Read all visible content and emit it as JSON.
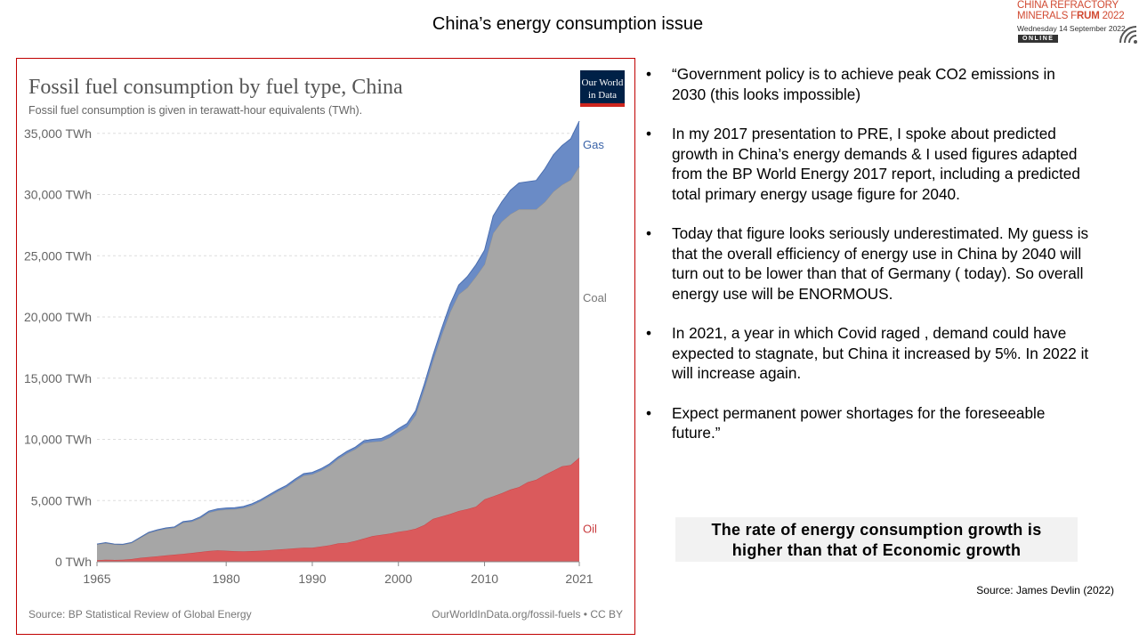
{
  "slide": {
    "title": "China’s energy consumption issue",
    "source": "Source: James Devlin (2022)",
    "callout_line1": "The rate of energy consumption growth is",
    "callout_line2": "higher than that of Economic growth"
  },
  "logo": {
    "line1": "CHINA REFRACTORY",
    "line2_prefix": "MINERALS F",
    "line2_bold": "RUM",
    "line2_suffix": " 2022",
    "date": "Wednesday 14 September 2022",
    "badge": "ONLINE",
    "icon": "signal-waves-icon"
  },
  "bullets": [
    "“Government policy is to achieve peak CO2 emissions in 2030 (this looks impossible)",
    "In my 2017 presentation to PRE, I spoke about predicted growth in China’s energy demands & I used figures adapted from the BP World Energy 2017 report, including a predicted total primary energy usage figure for 2040.",
    "Today that figure looks seriously underestimated.  My guess is that the overall efficiency of energy use in China by 2040 will turn out to be lower than that of Germany ( today).  So overall energy use will be ENORMOUS.",
    "In 2021, a year in which Covid raged , demand could have expected to  stagnate, but China it increased by 5%.  In 2022 it will increase again.",
    "Expect  permanent power shortages for the foreseeable future.”"
  ],
  "bullet_symbol": "•",
  "chart_data": {
    "type": "area",
    "stacked": true,
    "title": "Fossil fuel consumption by fuel type, China",
    "subtitle": "Fossil fuel consumption is given in terawatt-hour equivalents (TWh).",
    "source": "Source: BP Statistical Review of Global Energy",
    "credit": "OurWorldInData.org/fossil-fuels • CC BY",
    "badge_line1": "Our World",
    "badge_line2": "in Data",
    "colors": {
      "Oil": "#da5a5c",
      "Coal": "#a6a6a6",
      "Gas": "#6a8bc6",
      "badge_bg": "#002147",
      "badge_bar": "#ce261e"
    },
    "x_ticks": [
      1965,
      1980,
      1990,
      2000,
      2010,
      2021
    ],
    "y_ticks": [
      {
        "value": 0,
        "label": "0 TWh"
      },
      {
        "value": 5000,
        "label": "5,000 TWh"
      },
      {
        "value": 10000,
        "label": "10,000 TWh"
      },
      {
        "value": 15000,
        "label": "15,000 TWh"
      },
      {
        "value": 20000,
        "label": "20,000 TWh"
      },
      {
        "value": 25000,
        "label": "25,000 TWh"
      },
      {
        "value": 30000,
        "label": "30,000 TWh"
      },
      {
        "value": 35000,
        "label": "35,000 TWh"
      }
    ],
    "xlim": [
      1965,
      2021
    ],
    "ylim": [
      0,
      36000
    ],
    "x": [
      1965,
      1966,
      1967,
      1968,
      1969,
      1970,
      1971,
      1972,
      1973,
      1974,
      1975,
      1976,
      1977,
      1978,
      1979,
      1980,
      1981,
      1982,
      1983,
      1984,
      1985,
      1986,
      1987,
      1988,
      1989,
      1990,
      1991,
      1992,
      1993,
      1994,
      1995,
      1996,
      1997,
      1998,
      1999,
      2000,
      2001,
      2002,
      2003,
      2004,
      2005,
      2006,
      2007,
      2008,
      2009,
      2010,
      2011,
      2012,
      2013,
      2014,
      2015,
      2016,
      2017,
      2018,
      2019,
      2020,
      2021
    ],
    "series": [
      {
        "name": "Oil",
        "values": [
          130,
          160,
          150,
          160,
          220,
          320,
          380,
          450,
          520,
          580,
          650,
          720,
          800,
          880,
          930,
          900,
          860,
          850,
          870,
          900,
          950,
          1000,
          1050,
          1100,
          1150,
          1150,
          1250,
          1350,
          1500,
          1550,
          1700,
          1900,
          2100,
          2200,
          2300,
          2450,
          2550,
          2700,
          3000,
          3500,
          3700,
          3900,
          4150,
          4300,
          4500,
          5100,
          5350,
          5600,
          5900,
          6100,
          6500,
          6700,
          7100,
          7450,
          7800,
          7900,
          8500
        ]
      },
      {
        "name": "Coal",
        "values": [
          1290,
          1370,
          1270,
          1240,
          1320,
          1630,
          1970,
          2100,
          2180,
          2200,
          2550,
          2560,
          2770,
          3150,
          3270,
          3370,
          3440,
          3550,
          3750,
          4050,
          4400,
          4750,
          5050,
          5500,
          5900,
          6000,
          6200,
          6500,
          6900,
          7300,
          7500,
          7800,
          7700,
          7650,
          7850,
          8150,
          8450,
          9300,
          11100,
          12900,
          14800,
          16500,
          17700,
          18100,
          18800,
          19200,
          21500,
          22200,
          22500,
          22700,
          22300,
          22100,
          22300,
          22800,
          23000,
          23300,
          23800
        ]
      },
      {
        "name": "Gas",
        "values": [
          30,
          30,
          30,
          30,
          30,
          40,
          50,
          60,
          60,
          70,
          80,
          90,
          100,
          110,
          120,
          120,
          120,
          120,
          120,
          120,
          130,
          140,
          140,
          150,
          150,
          150,
          150,
          150,
          160,
          160,
          170,
          190,
          200,
          220,
          250,
          280,
          300,
          340,
          400,
          450,
          520,
          620,
          760,
          900,
          960,
          1150,
          1400,
          1600,
          1950,
          2150,
          2250,
          2350,
          2700,
          3000,
          3200,
          3350,
          3700
        ]
      }
    ],
    "series_labels": [
      "Gas",
      "Coal",
      "Oil"
    ]
  }
}
